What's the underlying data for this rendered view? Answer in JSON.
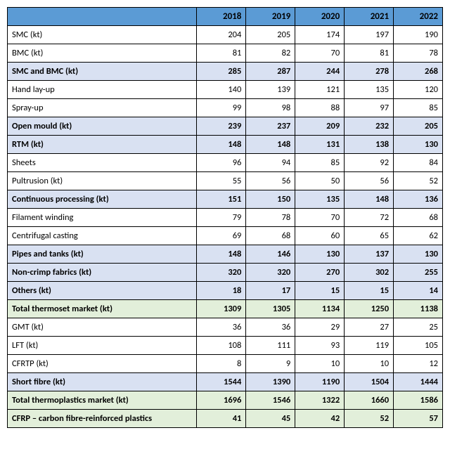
{
  "table": {
    "type": "table",
    "colors": {
      "header_bg": "#5b9bd5",
      "plain_bg": "#ffffff",
      "blue_bg": "#d9e1f2",
      "green_bg": "#e2efda",
      "border": "#000000"
    },
    "years": [
      "2018",
      "2019",
      "2020",
      "2021",
      "2022"
    ],
    "rows": [
      {
        "label": "SMC (kt)",
        "vals": [
          "204",
          "205",
          "174",
          "197",
          "190"
        ],
        "style": "plain"
      },
      {
        "label": "BMC (kt)",
        "vals": [
          "81",
          "82",
          "70",
          "81",
          "78"
        ],
        "style": "plain"
      },
      {
        "label": "SMC and BMC (kt)",
        "vals": [
          "285",
          "287",
          "244",
          "278",
          "268"
        ],
        "style": "bold-blue"
      },
      {
        "label": "Hand lay-up",
        "vals": [
          "140",
          "139",
          "121",
          "135",
          "120"
        ],
        "style": "plain"
      },
      {
        "label": "Spray-up",
        "vals": [
          "99",
          "98",
          "88",
          "97",
          "85"
        ],
        "style": "plain"
      },
      {
        "label": "Open mould (kt)",
        "vals": [
          "239",
          "237",
          "209",
          "232",
          "205"
        ],
        "style": "bold-blue"
      },
      {
        "label": "RTM (kt)",
        "vals": [
          "148",
          "148",
          "131",
          "138",
          "130"
        ],
        "style": "bold-blue"
      },
      {
        "label": "Sheets",
        "vals": [
          "96",
          "94",
          "85",
          "92",
          "84"
        ],
        "style": "plain"
      },
      {
        "label": "Pultrusion (kt)",
        "vals": [
          "55",
          "56",
          "50",
          "56",
          "52"
        ],
        "style": "plain"
      },
      {
        "label": "Continuous processing (kt)",
        "vals": [
          "151",
          "150",
          "135",
          "148",
          "136"
        ],
        "style": "bold-blue"
      },
      {
        "label": "Filament winding",
        "vals": [
          "79",
          "78",
          "70",
          "72",
          "68"
        ],
        "style": "plain"
      },
      {
        "label": "Centrifugal casting",
        "vals": [
          "69",
          "68",
          "60",
          "65",
          "62"
        ],
        "style": "plain"
      },
      {
        "label": "Pipes and tanks (kt)",
        "vals": [
          "148",
          "146",
          "130",
          "137",
          "130"
        ],
        "style": "bold-blue"
      },
      {
        "label": "Non-crimp fabrics (kt)",
        "vals": [
          "320",
          "320",
          "270",
          "302",
          "255"
        ],
        "style": "bold-blue"
      },
      {
        "label": "Others (kt)",
        "vals": [
          "18",
          "17",
          "15",
          "15",
          "14"
        ],
        "style": "bold-blue"
      },
      {
        "label": "Total thermoset market (kt)",
        "vals": [
          "1309",
          "1305",
          "1134",
          "1250",
          "1138"
        ],
        "style": "bold-green"
      },
      {
        "label": "GMT (kt)",
        "vals": [
          "36",
          "36",
          "29",
          "27",
          "25"
        ],
        "style": "plain"
      },
      {
        "label": "LFT (kt)",
        "vals": [
          "108",
          "111",
          "93",
          "119",
          "105"
        ],
        "style": "plain"
      },
      {
        "label": "CFRTP (kt)",
        "vals": [
          "8",
          "9",
          "10",
          "10",
          "12"
        ],
        "style": "plain"
      },
      {
        "label": "Short fibre (kt)",
        "vals": [
          "1544",
          "1390",
          "1190",
          "1504",
          "1444"
        ],
        "style": "bold-blue"
      },
      {
        "label": "Total thermoplastics market (kt)",
        "vals": [
          "1696",
          "1546",
          "1322",
          "1660",
          "1586"
        ],
        "style": "bold-green"
      },
      {
        "label": "CFRP – carbon fibre-reinforced plastics",
        "vals": [
          "41",
          "45",
          "42",
          "52",
          "57"
        ],
        "style": "bold-green"
      }
    ]
  }
}
